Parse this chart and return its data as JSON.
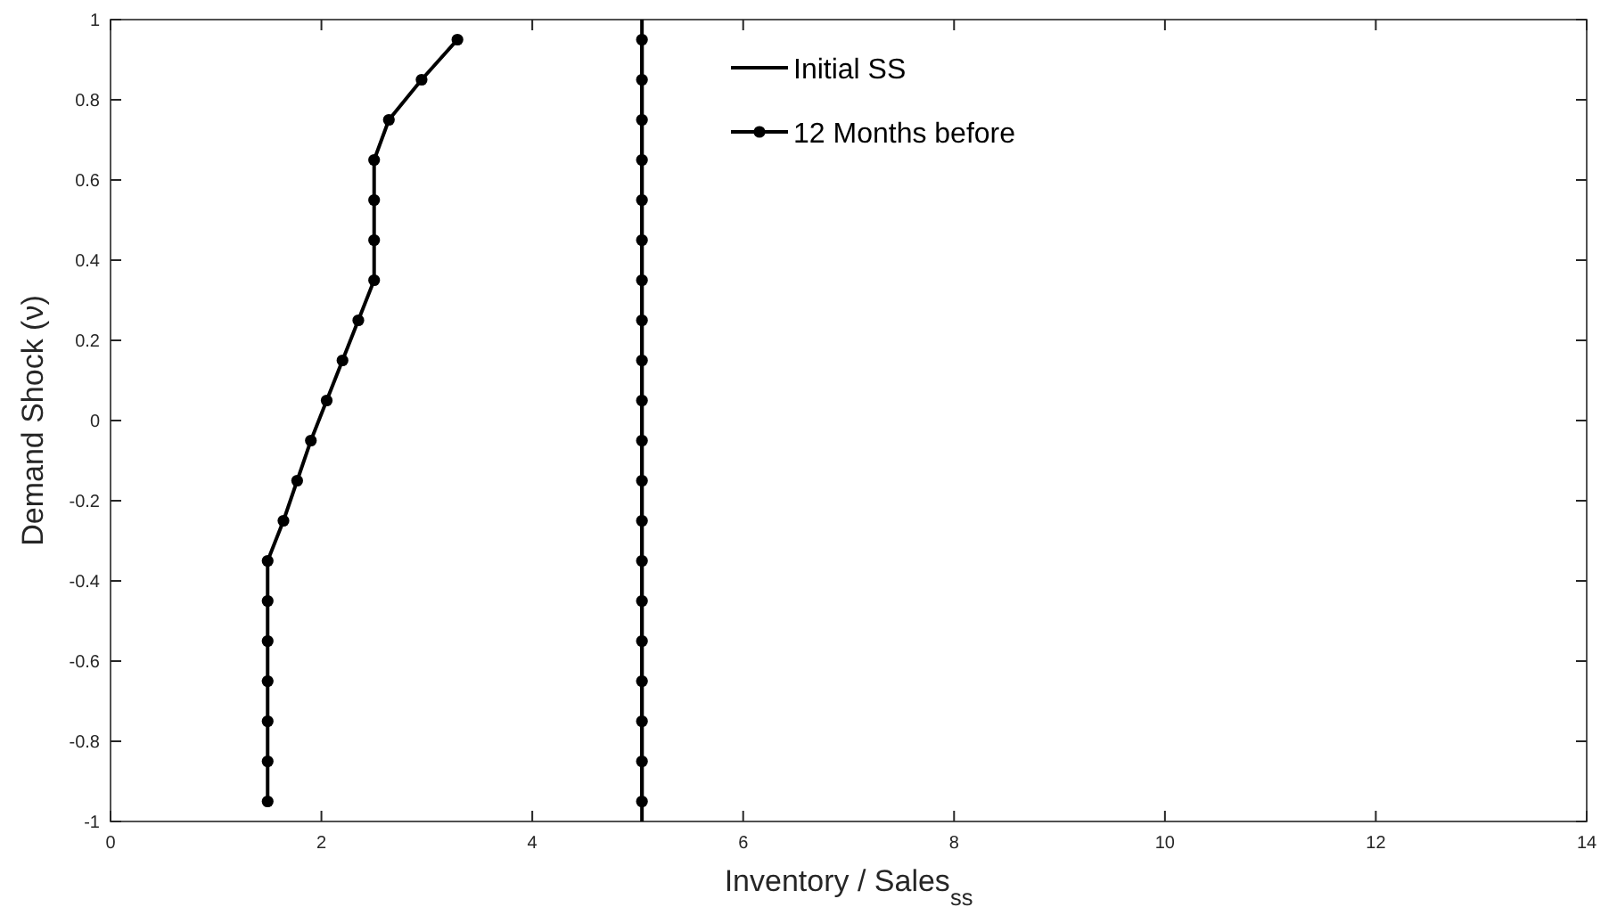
{
  "chart_data": {
    "type": "line",
    "xlabel": "Inventory / Sales$_{ss}$",
    "ylabel": "Demand Shock (ν)",
    "xlim": [
      0,
      14
    ],
    "xticks": [
      0,
      2,
      4,
      6,
      8,
      10,
      12,
      14
    ],
    "ylim": [
      -1,
      1
    ],
    "yticks": [
      -1,
      -0.8,
      -0.6,
      -0.4,
      -0.2,
      0,
      0.2,
      0.4,
      0.6,
      0.8,
      1
    ],
    "grid": false,
    "legend": "top",
    "series": [
      {
        "name": "Initial SS",
        "color": "#000000",
        "marker": "none",
        "x": [
          5.04,
          5.04
        ],
        "values": [
          -1,
          1
        ]
      },
      {
        "name": "12 Months before",
        "color": "#000000",
        "marker": "circle",
        "x": [
          5.04,
          5.04,
          5.04,
          5.04,
          5.04,
          5.04,
          5.04,
          5.04,
          5.04,
          5.04,
          5.04,
          5.04,
          5.04,
          5.04,
          5.04,
          5.04,
          5.04,
          5.04,
          5.04,
          5.04
        ],
        "values": [
          -0.95,
          -0.85,
          -0.75,
          -0.65,
          -0.55,
          -0.45,
          -0.35,
          -0.25,
          -0.15,
          -0.05,
          0.05,
          0.15,
          0.25,
          0.35,
          0.45,
          0.55,
          0.65,
          0.75,
          0.85,
          0.95
        ]
      },
      {
        "color": "#000000",
        "marker": "circle",
        "x": [
          1.49,
          1.49,
          1.49,
          1.49,
          1.49,
          1.49,
          1.49,
          1.64,
          1.77,
          1.9,
          2.05,
          2.2,
          2.35,
          2.5,
          2.5,
          2.5,
          2.5,
          2.64,
          2.95,
          3.29
        ],
        "values": [
          -0.95,
          -0.85,
          -0.75,
          -0.65,
          -0.55,
          -0.45,
          -0.35,
          -0.25,
          -0.15,
          -0.05,
          0.05,
          0.15,
          0.25,
          0.35,
          0.45,
          0.55,
          0.65,
          0.75,
          0.85,
          0.95
        ]
      }
    ]
  }
}
